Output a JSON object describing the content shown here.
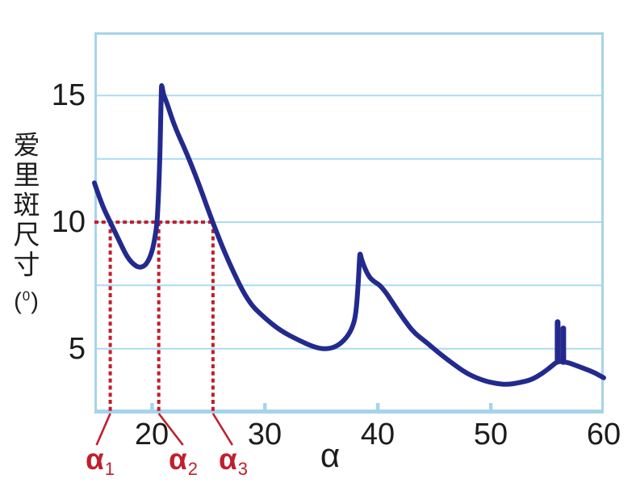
{
  "colors": {
    "curve": "#232a8d",
    "grid": "#aadcf0",
    "frame": "#a6d4ea",
    "annotation": "#c01f2d",
    "text": "#1c1c1c",
    "background": "#ffffff"
  },
  "chart_data": {
    "type": "line",
    "title": "",
    "xlabel": "α",
    "ylabel": "爱里斑尺寸(⁰)",
    "ylabel_chars": [
      "爱",
      "里",
      "斑",
      "尺",
      "寸"
    ],
    "ylabel_unit": {
      "prefix": "(",
      "sup": "0",
      "suffix": ")"
    },
    "xlim": [
      14.9,
      60
    ],
    "ylim": [
      2.5,
      17.5
    ],
    "grid": "horizontal",
    "gridlines_y": [
      5,
      7.5,
      10,
      12.5,
      15
    ],
    "x_ticks": [
      {
        "value": 20,
        "label": "20"
      },
      {
        "value": 30,
        "label": "30"
      },
      {
        "value": 40,
        "label": "40"
      },
      {
        "value": 50,
        "label": "50"
      },
      {
        "value": 60,
        "label": "60"
      }
    ],
    "y_ticks": [
      {
        "value": 15,
        "label": "15"
      },
      {
        "value": 10,
        "label": "10"
      },
      {
        "value": 5,
        "label": "5"
      }
    ],
    "series": [
      {
        "name": "airy-disk-size",
        "color": "#232a8d",
        "points": [
          [
            14.9,
            11.55
          ],
          [
            15.5,
            10.75
          ],
          [
            16.3,
            10.0
          ],
          [
            17.0,
            9.35
          ],
          [
            17.8,
            8.6
          ],
          [
            18.5,
            8.27
          ],
          [
            19.0,
            8.2
          ],
          [
            19.5,
            8.32
          ],
          [
            20.0,
            8.8
          ],
          [
            20.3,
            9.5
          ],
          [
            20.45,
            10.0
          ],
          [
            20.57,
            11.0
          ],
          [
            20.67,
            12.2
          ],
          [
            20.75,
            13.6
          ],
          [
            20.82,
            15.1
          ],
          [
            20.85,
            15.5
          ],
          [
            21.0,
            15.05
          ],
          [
            21.3,
            14.74
          ],
          [
            22.0,
            13.78
          ],
          [
            23.1,
            12.7
          ],
          [
            24.2,
            11.45
          ],
          [
            25.4,
            9.95
          ],
          [
            26.8,
            8.4
          ],
          [
            28.5,
            6.85
          ],
          [
            30.0,
            6.2
          ],
          [
            31.4,
            5.7
          ],
          [
            33.0,
            5.33
          ],
          [
            34.3,
            5.07
          ],
          [
            35.3,
            4.97
          ],
          [
            36.3,
            5.07
          ],
          [
            37.1,
            5.36
          ],
          [
            37.7,
            5.77
          ],
          [
            38.05,
            6.3
          ],
          [
            38.27,
            7.6
          ],
          [
            38.38,
            8.6
          ],
          [
            38.42,
            8.8
          ],
          [
            38.6,
            8.45
          ],
          [
            39.15,
            7.87
          ],
          [
            39.65,
            7.65
          ],
          [
            40.15,
            7.52
          ],
          [
            40.7,
            7.23
          ],
          [
            41.4,
            6.75
          ],
          [
            42.3,
            6.15
          ],
          [
            43.2,
            5.63
          ],
          [
            44.3,
            5.25
          ],
          [
            45.4,
            4.83
          ],
          [
            46.5,
            4.45
          ],
          [
            48.0,
            3.98
          ],
          [
            49.4,
            3.73
          ],
          [
            50.5,
            3.62
          ],
          [
            51.4,
            3.58
          ],
          [
            52.5,
            3.65
          ],
          [
            53.6,
            3.77
          ],
          [
            54.6,
            4.03
          ],
          [
            55.4,
            4.31
          ],
          [
            55.9,
            4.5
          ],
          [
            56.6,
            4.48
          ],
          [
            57.3,
            4.38
          ],
          [
            58.4,
            4.19
          ],
          [
            59.2,
            4.05
          ],
          [
            60.0,
            3.85
          ]
        ]
      }
    ],
    "spikes": [
      {
        "x": 55.92,
        "y_base": 4.5,
        "y_top": 6.05
      },
      {
        "x": 56.42,
        "y_base": 4.47,
        "y_top": 5.8
      }
    ],
    "reference_line": {
      "y": 10,
      "x_start": 14.9,
      "x_end": 25.55,
      "style": "dashed",
      "color": "#c01f2d"
    },
    "markers": [
      {
        "name": "alpha-1",
        "base": "α",
        "sub": "1",
        "x": 16.3
      },
      {
        "name": "alpha-2",
        "base": "α",
        "sub": "2",
        "x": 20.6
      },
      {
        "name": "alpha-3",
        "base": "α",
        "sub": "3",
        "x": 25.4
      }
    ]
  }
}
